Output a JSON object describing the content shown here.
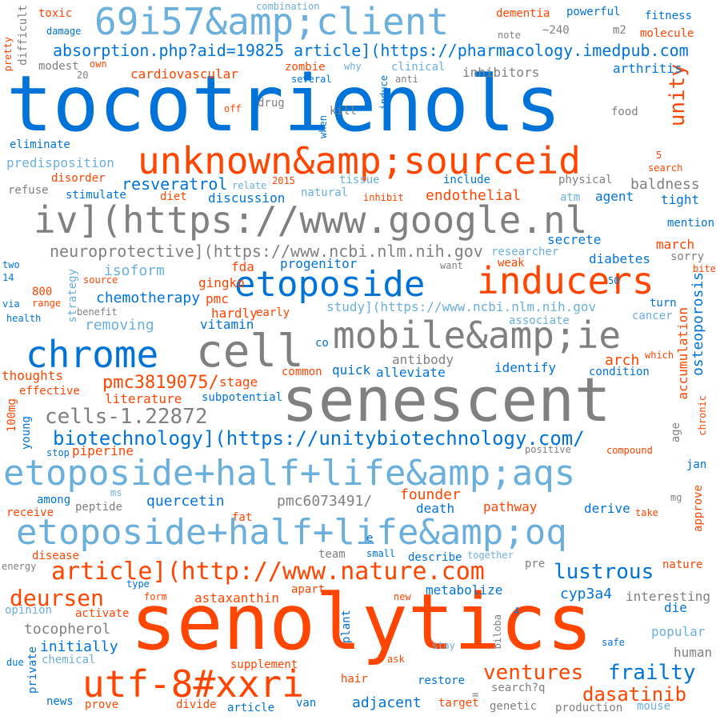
{
  "palette": {
    "blue": "#0073d9",
    "orange": "#ff4500",
    "gray": "#808080",
    "light_blue": "#6bafdc"
  },
  "words": [
    {
      "text": "tocotrienols",
      "color": "blue"
    },
    {
      "text": "senolytics",
      "color": "orange"
    },
    {
      "text": "senescent",
      "color": "gray"
    },
    {
      "text": "69i57&amp;client",
      "color": "light_blue"
    },
    {
      "text": "unknown&amp;sourceid",
      "color": "orange"
    },
    {
      "text": "iv](https://www.google.nl",
      "color": "gray"
    },
    {
      "text": "etoposide",
      "color": "blue"
    },
    {
      "text": "inducers",
      "color": "orange"
    },
    {
      "text": "chrome",
      "color": "blue"
    },
    {
      "text": "cell",
      "color": "gray"
    },
    {
      "text": "mobile&amp;ie",
      "color": "gray"
    },
    {
      "text": "etoposide+half+life&amp;aqs",
      "color": "light_blue"
    },
    {
      "text": "etoposide+half+life&amp;oq",
      "color": "light_blue"
    },
    {
      "text": "utf-8#xxri",
      "color": "orange"
    },
    {
      "text": "article](http://www.nature.com",
      "color": "orange"
    },
    {
      "text": "biotechnology](https://unitybiotechnology.com/",
      "color": "blue"
    },
    {
      "text": "absorption.php?aid=19825 article](https://pharmacology.imedpub.com",
      "color": "blue"
    },
    {
      "text": "neuroprotective](https://www.ncbi.nlm.nih.gov",
      "color": "gray"
    },
    {
      "text": "study](https://www.ncbi.nlm.nih.gov",
      "color": "light_blue"
    },
    {
      "text": "cells-1.22872",
      "color": "gray"
    },
    {
      "text": "pmc3819075/",
      "color": "orange"
    },
    {
      "text": "deursen",
      "color": "orange"
    },
    {
      "text": "lustrous",
      "color": "blue"
    },
    {
      "text": "frailty",
      "color": "blue"
    },
    {
      "text": "ventures",
      "color": "orange"
    },
    {
      "text": "dasatinib",
      "color": "orange"
    },
    {
      "text": "unity",
      "color": "orange"
    },
    {
      "text": "osteoporosis",
      "color": "blue"
    },
    {
      "text": "accumulation",
      "color": "orange"
    },
    {
      "text": "resveratrol",
      "color": "blue"
    },
    {
      "text": "endothelial",
      "color": "orange"
    },
    {
      "text": "baldness",
      "color": "gray"
    },
    {
      "text": "isoform",
      "color": "light_blue"
    },
    {
      "text": "chemotherapy",
      "color": "blue"
    },
    {
      "text": "removing",
      "color": "light_blue"
    },
    {
      "text": "progenitor",
      "color": "blue"
    },
    {
      "text": "quercetin",
      "color": "blue"
    },
    {
      "text": "pmc6073491/",
      "color": "gray"
    },
    {
      "text": "founder",
      "color": "orange"
    },
    {
      "text": "death",
      "color": "blue"
    },
    {
      "text": "pathway",
      "color": "orange"
    },
    {
      "text": "derive",
      "color": "blue"
    },
    {
      "text": "astaxanthin",
      "color": "orange"
    },
    {
      "text": "tocopherol",
      "color": "gray"
    },
    {
      "text": "initially",
      "color": "blue"
    },
    {
      "text": "adjacent",
      "color": "blue"
    },
    {
      "text": "cyp3a4",
      "color": "blue"
    },
    {
      "text": "metabolize",
      "color": "blue"
    },
    {
      "text": "interesting",
      "color": "gray"
    },
    {
      "text": "die",
      "color": "blue"
    },
    {
      "text": "popular",
      "color": "light_blue"
    },
    {
      "text": "human",
      "color": "gray"
    },
    {
      "text": "piperine",
      "color": "orange"
    },
    {
      "text": "literature",
      "color": "orange"
    },
    {
      "text": "subpotential",
      "color": "blue"
    },
    {
      "text": "stage",
      "color": "orange"
    },
    {
      "text": "alleviate",
      "color": "blue"
    },
    {
      "text": "antibody",
      "color": "gray"
    },
    {
      "text": "identify",
      "color": "blue"
    },
    {
      "text": "condition",
      "color": "blue"
    },
    {
      "text": "arch",
      "color": "orange"
    },
    {
      "text": "quick",
      "color": "blue"
    },
    {
      "text": "common",
      "color": "orange"
    },
    {
      "text": "thoughts",
      "color": "orange"
    },
    {
      "text": "effective",
      "color": "orange"
    },
    {
      "text": "vitamin",
      "color": "blue"
    },
    {
      "text": "hardly",
      "color": "orange"
    },
    {
      "text": "early",
      "color": "orange"
    },
    {
      "text": "pmc",
      "color": "orange"
    },
    {
      "text": "gingko",
      "color": "orange"
    },
    {
      "text": "fda",
      "color": "orange"
    },
    {
      "text": "secrete",
      "color": "blue"
    },
    {
      "text": "diabetes",
      "color": "blue"
    },
    {
      "text": "researcher",
      "color": "light_blue"
    },
    {
      "text": "march",
      "color": "orange"
    },
    {
      "text": "sorry",
      "color": "gray"
    },
    {
      "text": "mention",
      "color": "blue"
    },
    {
      "text": "tight",
      "color": "blue"
    },
    {
      "text": "agent",
      "color": "blue"
    },
    {
      "text": "atm",
      "color": "light_blue"
    },
    {
      "text": "discussion",
      "color": "blue"
    },
    {
      "text": "diet",
      "color": "orange"
    },
    {
      "text": "stimulate",
      "color": "blue"
    },
    {
      "text": "disorder",
      "color": "orange"
    },
    {
      "text": "refuse",
      "color": "gray"
    },
    {
      "text": "predisposition",
      "color": "light_blue"
    },
    {
      "text": "eliminate",
      "color": "blue"
    },
    {
      "text": "cardiovascular",
      "color": "orange"
    },
    {
      "text": "zombie",
      "color": "orange"
    },
    {
      "text": "clinical",
      "color": "light_blue"
    },
    {
      "text": "several",
      "color": "blue"
    },
    {
      "text": "anti",
      "color": "gray"
    },
    {
      "text": "inhibitors",
      "color": "gray"
    },
    {
      "text": "arthritis",
      "color": "blue"
    },
    {
      "text": "modest",
      "color": "gray"
    },
    {
      "text": "own",
      "color": "orange"
    },
    {
      "text": "why",
      "color": "light_blue"
    },
    {
      "text": "dementia",
      "color": "orange"
    },
    {
      "text": "powerful",
      "color": "blue"
    },
    {
      "text": "fitness",
      "color": "blue"
    },
    {
      "text": "molecule",
      "color": "orange"
    },
    {
      "text": "m2",
      "color": "gray"
    },
    {
      "text": "~240",
      "color": "gray"
    },
    {
      "text": "note",
      "color": "gray"
    },
    {
      "text": "toxic",
      "color": "orange"
    },
    {
      "text": "damage",
      "color": "blue"
    },
    {
      "text": "combination",
      "color": "light_blue"
    },
    {
      "text": "drug",
      "color": "gray"
    },
    {
      "text": "kill",
      "color": "gray"
    },
    {
      "text": "off",
      "color": "orange"
    },
    {
      "text": "food",
      "color": "gray"
    },
    {
      "text": "physical",
      "color": "gray"
    },
    {
      "text": "tissue",
      "color": "light_blue"
    },
    {
      "text": "natural",
      "color": "light_blue"
    },
    {
      "text": "inhibit",
      "color": "orange"
    },
    {
      "text": "include",
      "color": "blue"
    },
    {
      "text": "relate",
      "color": "light_blue"
    },
    {
      "text": "2015",
      "color": "orange"
    },
    {
      "text": "search",
      "color": "orange"
    },
    {
      "text": "want",
      "color": "gray"
    },
    {
      "text": "weak",
      "color": "orange"
    },
    {
      "text": "two",
      "color": "blue"
    },
    {
      "text": "14",
      "color": "blue"
    },
    {
      "text": "800",
      "color": "orange"
    },
    {
      "text": "range",
      "color": "orange"
    },
    {
      "text": "source",
      "color": "orange"
    },
    {
      "text": "benefit",
      "color": "gray"
    },
    {
      "text": "via",
      "color": "blue"
    },
    {
      "text": "health",
      "color": "blue"
    },
    {
      "text": "associate",
      "color": "light_blue"
    },
    {
      "text": "cancer",
      "color": "light_blue"
    },
    {
      "text": "turn",
      "color": "blue"
    },
    {
      "text": "50",
      "color": "blue"
    },
    {
      "text": "co",
      "color": "blue"
    },
    {
      "text": "which",
      "color": "orange"
    },
    {
      "text": "young",
      "color": "blue"
    },
    {
      "text": "100mg",
      "color": "orange"
    },
    {
      "text": "stop",
      "color": "blue"
    },
    {
      "text": "positive",
      "color": "gray"
    },
    {
      "text": "compound",
      "color": "orange"
    },
    {
      "text": "age",
      "color": "gray"
    },
    {
      "text": "chronic",
      "color": "orange"
    },
    {
      "text": "jan",
      "color": "blue"
    },
    {
      "text": "ms",
      "color": "light_blue"
    },
    {
      "text": "among",
      "color": "blue"
    },
    {
      "text": "peptide",
      "color": "gray"
    },
    {
      "text": "receive",
      "color": "orange"
    },
    {
      "text": "fat",
      "color": "orange"
    },
    {
      "text": "take",
      "color": "orange"
    },
    {
      "text": "mg",
      "color": "gray"
    },
    {
      "text": "approve",
      "color": "orange"
    },
    {
      "text": "disease",
      "color": "orange"
    },
    {
      "text": "team",
      "color": "gray"
    },
    {
      "text": "small",
      "color": "blue"
    },
    {
      "text": "describe",
      "color": "blue"
    },
    {
      "text": "together",
      "color": "light_blue"
    },
    {
      "text": "energy",
      "color": "gray"
    },
    {
      "text": "pre",
      "color": "gray"
    },
    {
      "text": "nature",
      "color": "orange"
    },
    {
      "text": "type",
      "color": "blue"
    },
    {
      "text": "form",
      "color": "orange"
    },
    {
      "text": "apart",
      "color": "orange"
    },
    {
      "text": "new",
      "color": "orange"
    },
    {
      "text": "opinion",
      "color": "light_blue"
    },
    {
      "text": "activate",
      "color": "orange"
    },
    {
      "text": "plant",
      "color": "blue"
    },
    {
      "text": "biloba",
      "color": "gray"
    },
    {
      "text": "safe",
      "color": "blue"
    },
    {
      "text": "stay",
      "color": "light_blue"
    },
    {
      "text": "private",
      "color": "blue"
    },
    {
      "text": "due",
      "color": "blue"
    },
    {
      "text": "chemical",
      "color": "light_blue"
    },
    {
      "text": "supplement",
      "color": "orange"
    },
    {
      "text": "ask",
      "color": "orange"
    },
    {
      "text": "hair",
      "color": "orange"
    },
    {
      "text": "restore",
      "color": "blue"
    },
    {
      "text": "search?q",
      "color": "gray"
    },
    {
      "text": "news",
      "color": "blue"
    },
    {
      "text": "prove",
      "color": "orange"
    },
    {
      "text": "divide",
      "color": "orange"
    },
    {
      "text": "article",
      "color": "blue"
    },
    {
      "text": "van",
      "color": "blue"
    },
    {
      "text": "target",
      "color": "orange"
    },
    {
      "text": "genetic",
      "color": "gray"
    },
    {
      "text": "production",
      "color": "gray"
    },
    {
      "text": "mouse",
      "color": "light_blue"
    },
    {
      "text": "difficult",
      "color": "gray"
    },
    {
      "text": "pretty",
      "color": "orange"
    },
    {
      "text": "20",
      "color": "gray"
    },
    {
      "text": "induce",
      "color": "blue"
    },
    {
      "text": "when",
      "color": "blue"
    },
    {
      "text": "strategy",
      "color": "light_blue"
    },
    {
      "text": "bite",
      "color": "orange"
    },
    {
      "text": "5",
      "color": "orange"
    },
    {
      "text": "e",
      "color": "blue"
    },
    {
      "text": "4",
      "color": "blue"
    },
    {
      "text": "=",
      "color": "gray"
    }
  ]
}
